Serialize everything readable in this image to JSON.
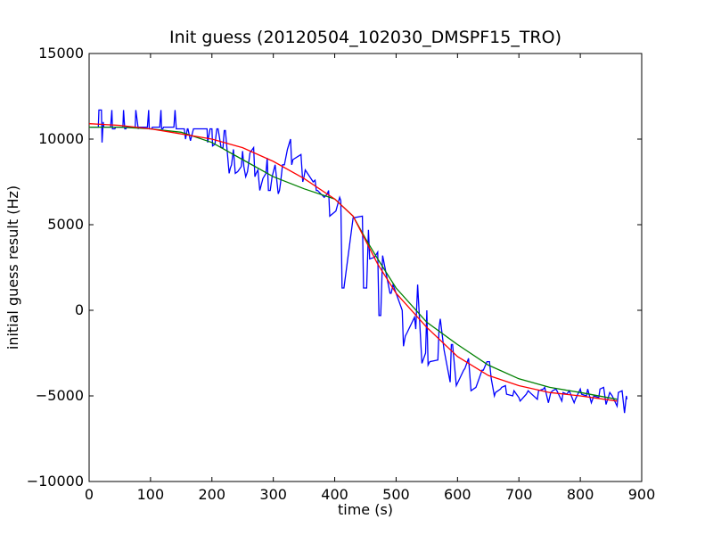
{
  "chart_data": {
    "type": "line",
    "title": "Init guess (20120504_102030_DMSPF15_TRO)",
    "xlabel": "time (s)",
    "ylabel": "initial guess result (Hz)",
    "xlim": [
      0,
      900
    ],
    "ylim": [
      -10000,
      15000
    ],
    "xticks": [
      0,
      100,
      200,
      300,
      400,
      500,
      600,
      700,
      800,
      900
    ],
    "yticks": [
      -10000,
      -5000,
      0,
      5000,
      10000,
      15000
    ],
    "grid": false,
    "legend": "none",
    "series": [
      {
        "color": "#0000ff",
        "x": [
          2,
          15,
          16,
          20,
          21,
          23,
          24,
          35,
          37,
          38,
          42,
          43,
          55,
          56,
          58,
          60,
          61,
          75,
          76,
          80,
          81,
          95,
          97,
          98,
          102,
          103,
          115,
          117,
          118,
          120,
          121,
          138,
          140,
          142,
          143,
          155,
          157,
          160,
          161,
          165,
          170,
          192,
          193,
          197,
          200,
          201,
          205,
          208,
          210,
          215,
          218,
          220,
          222,
          228,
          230,
          232,
          235,
          238,
          242,
          248,
          250,
          252,
          255,
          258,
          262,
          268,
          270,
          272,
          275,
          278,
          283,
          288,
          290,
          292,
          295,
          298,
          303,
          308,
          310,
          312,
          315,
          318,
          323,
          328,
          330,
          332,
          345,
          348,
          350,
          352,
          365,
          368,
          370,
          372,
          383,
          388,
          390,
          392,
          402,
          408,
          410,
          412,
          415,
          430,
          445,
          447,
          452,
          455,
          457,
          465,
          470,
          472,
          475,
          478,
          490,
          492,
          495,
          502,
          510,
          512,
          515,
          518,
          530,
          532,
          535,
          542,
          548,
          550,
          552,
          555,
          568,
          570,
          572,
          578,
          588,
          590,
          592,
          598,
          610,
          612,
          618,
          622,
          630,
          632,
          640,
          642,
          648,
          652,
          655,
          660,
          662,
          670,
          672,
          678,
          680,
          690,
          692,
          700,
          702,
          712,
          715,
          718,
          730,
          732,
          740,
          742,
          748,
          752,
          755,
          760,
          762,
          770,
          772,
          778,
          782,
          790,
          792,
          800,
          802,
          810,
          812,
          818,
          822,
          830,
          832,
          838,
          842,
          848,
          852,
          860,
          862,
          868,
          872,
          875,
          876
        ],
        "y": [
          10700,
          10700,
          11700,
          11700,
          9800,
          11000,
          10700,
          10700,
          11700,
          10600,
          10600,
          10700,
          10700,
          11700,
          10600,
          10600,
          10700,
          10700,
          11700,
          10600,
          10700,
          10700,
          11700,
          10600,
          10600,
          10700,
          10700,
          11700,
          10600,
          10600,
          10700,
          10700,
          11700,
          10600,
          10600,
          10600,
          10000,
          10600,
          10600,
          9900,
          10600,
          10600,
          9800,
          10600,
          10600,
          9600,
          9700,
          10600,
          10600,
          9500,
          9500,
          10500,
          10500,
          8000,
          8300,
          8500,
          9400,
          8000,
          8100,
          8400,
          9300,
          8400,
          7800,
          8100,
          9200,
          9500,
          7800,
          8000,
          8200,
          7000,
          7700,
          8000,
          8900,
          7000,
          7000,
          7800,
          8500,
          6800,
          7000,
          7500,
          8500,
          8500,
          9400,
          10000,
          8500,
          8800,
          9100,
          7500,
          7800,
          8200,
          7500,
          7600,
          7000,
          7000,
          6600,
          6800,
          7000,
          5500,
          5800,
          6600,
          6400,
          1300,
          1300,
          5400,
          5500,
          1300,
          1300,
          4700,
          3000,
          3100,
          3400,
          -300,
          -300,
          3200,
          1000,
          1000,
          1500,
          800,
          0,
          -2100,
          -1500,
          -1300,
          -400,
          -1100,
          1500,
          -3100,
          -2500,
          0,
          -3200,
          -3000,
          -2900,
          -1000,
          -500,
          -2300,
          -4200,
          -2000,
          -2000,
          -4400,
          -3500,
          -3400,
          -2800,
          -4700,
          -4500,
          -4300,
          -3500,
          -3500,
          -3000,
          -3000,
          -4000,
          -5000,
          -4800,
          -4600,
          -4500,
          -4400,
          -4900,
          -5000,
          -4700,
          -5100,
          -5300,
          -4900,
          -4700,
          -4800,
          -5200,
          -4700,
          -4600,
          -4500,
          -5400,
          -4800,
          -4700,
          -4600,
          -4700,
          -5300,
          -4800,
          -4900,
          -4700,
          -5400,
          -5200,
          -4600,
          -4900,
          -5000,
          -4600,
          -5400,
          -5000,
          -5100,
          -4600,
          -4500,
          -5500,
          -4800,
          -5000,
          -5600,
          -4800,
          -4700,
          -6000,
          -5000,
          -5200
        ]
      },
      {
        "color": "#008000",
        "x": [
          0,
          50,
          100,
          150,
          200,
          250,
          300,
          350,
          400,
          430,
          450,
          470,
          500,
          550,
          600,
          650,
          700,
          750,
          800,
          860
        ],
        "y": [
          10700,
          10700,
          10600,
          10400,
          9800,
          8800,
          7800,
          7100,
          6500,
          5500,
          4200,
          3000,
          1300,
          -700,
          -2000,
          -3200,
          -4000,
          -4500,
          -4800,
          -5200
        ]
      },
      {
        "color": "#ff0000",
        "x": [
          0,
          50,
          100,
          150,
          200,
          250,
          300,
          350,
          400,
          430,
          450,
          470,
          500,
          550,
          600,
          650,
          700,
          750,
          800,
          860
        ],
        "y": [
          10900,
          10800,
          10600,
          10300,
          10000,
          9500,
          8700,
          7700,
          6500,
          5500,
          4100,
          2700,
          1000,
          -1000,
          -2700,
          -3800,
          -4400,
          -4800,
          -5000,
          -5300
        ]
      }
    ]
  }
}
